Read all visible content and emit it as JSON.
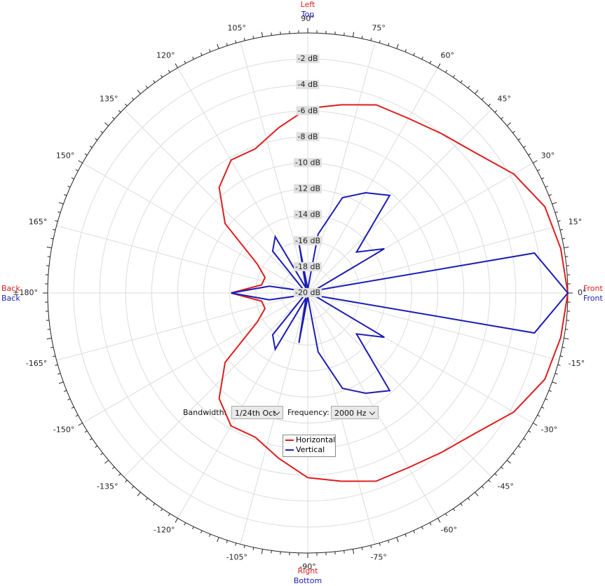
{
  "chart_data": {
    "type": "polar",
    "x": [
      -180,
      -170,
      -160,
      -150,
      -140,
      -130,
      -120,
      -110,
      -100,
      -90,
      -80,
      -70,
      -60,
      -50,
      -40,
      -30,
      -20,
      -10,
      0,
      10,
      20,
      30,
      40,
      50,
      60,
      70,
      80,
      90,
      100,
      110,
      120,
      130,
      140,
      150,
      160,
      170,
      180
    ],
    "series": [
      {
        "name": "Horizontal",
        "color": "#dd1c1c",
        "values": [
          -14.1,
          -16.4,
          -16.5,
          -15.5,
          -11.7,
          -9.4,
          -8.2,
          -8.2,
          -7.1,
          -5.8,
          -5.3,
          -4.6,
          -4.5,
          -4.0,
          -3.2,
          -1.7,
          -0.6,
          -0.25,
          0,
          -0.25,
          -0.6,
          -1.7,
          -3.2,
          -4.0,
          -4.5,
          -4.6,
          -5.3,
          -5.8,
          -7.1,
          -8.2,
          -8.2,
          -9.4,
          -11.7,
          -15.5,
          -16.5,
          -16.4,
          -14.1
        ]
      },
      {
        "name": "Vertical",
        "color": "#1c1cb4",
        "values": [
          -14.1,
          -17,
          -19.5,
          -19.5,
          -19.5,
          -15.8,
          -15,
          -19.6,
          -16.1,
          -19.7,
          -15.4,
          -12.2,
          -11.1,
          -10.2,
          -15.1,
          -13.2,
          -19.5,
          -2.3,
          0,
          -2.3,
          -19.5,
          -13.2,
          -15.1,
          -10.2,
          -11.1,
          -12.2,
          -15.4,
          -19.7,
          -16.1,
          -19.6,
          -15,
          -15.8,
          -19.5,
          -19.5,
          -19.5,
          -17,
          -14.1
        ]
      }
    ],
    "rlim": [
      -20,
      0
    ],
    "rticks": [
      {
        "value": -20,
        "label": "-20 dB"
      },
      {
        "value": -18,
        "label": "-18 dB"
      },
      {
        "value": -16,
        "label": "-16 dB"
      },
      {
        "value": -14,
        "label": "-14 dB"
      },
      {
        "value": -12,
        "label": "-12 dB"
      },
      {
        "value": -10,
        "label": "-10 dB"
      },
      {
        "value": -8,
        "label": "-8 dB"
      },
      {
        "value": -6,
        "label": "-6 dB"
      },
      {
        "value": -4,
        "label": "-4 dB"
      },
      {
        "value": -2,
        "label": "-2 dB"
      }
    ],
    "xticks": [
      {
        "value": 0,
        "label": "0°"
      },
      {
        "value": 15,
        "label": "15°"
      },
      {
        "value": 30,
        "label": "30°"
      },
      {
        "value": 45,
        "label": "45°"
      },
      {
        "value": 60,
        "label": "60°"
      },
      {
        "value": 75,
        "label": "75°"
      },
      {
        "value": 90,
        "label": "90°"
      },
      {
        "value": 105,
        "label": "105°"
      },
      {
        "value": 120,
        "label": "120°"
      },
      {
        "value": 135,
        "label": "135°"
      },
      {
        "value": 150,
        "label": "150°"
      },
      {
        "value": 165,
        "label": "165°"
      },
      {
        "value": 180,
        "label": "±180°"
      },
      {
        "value": -165,
        "label": "-165°"
      },
      {
        "value": -150,
        "label": "-150°"
      },
      {
        "value": -135,
        "label": "-135°"
      },
      {
        "value": -120,
        "label": "-120°"
      },
      {
        "value": -105,
        "label": "-105°"
      },
      {
        "value": -90,
        "label": "-90°"
      },
      {
        "value": -75,
        "label": "-75°"
      },
      {
        "value": -60,
        "label": "-60°"
      },
      {
        "value": -45,
        "label": "-45°"
      },
      {
        "value": -30,
        "label": "-30°"
      },
      {
        "value": -15,
        "label": "-15°"
      }
    ],
    "grid": true,
    "direction_labels": {
      "top": [
        {
          "text": "Left",
          "color": "#dd1c1c"
        },
        {
          "text": "Top",
          "color": "#1c1cb4"
        }
      ],
      "bottom": [
        {
          "text": "Right",
          "color": "#dd1c1c"
        },
        {
          "text": "Bottom",
          "color": "#1c1cb4"
        }
      ],
      "right": [
        {
          "text": "Front",
          "color": "#dd1c1c"
        },
        {
          "text": "Front",
          "color": "#1c1cb4"
        }
      ],
      "left": [
        {
          "text": "Back",
          "color": "#dd1c1c"
        },
        {
          "text": "Back",
          "color": "#1c1cb4"
        }
      ]
    }
  },
  "controls": {
    "bandwidth_label": "Bandwidth:",
    "bandwidth": "1/24th Oct",
    "frequency_label": "Frequency:",
    "frequency": "2000 Hz"
  }
}
